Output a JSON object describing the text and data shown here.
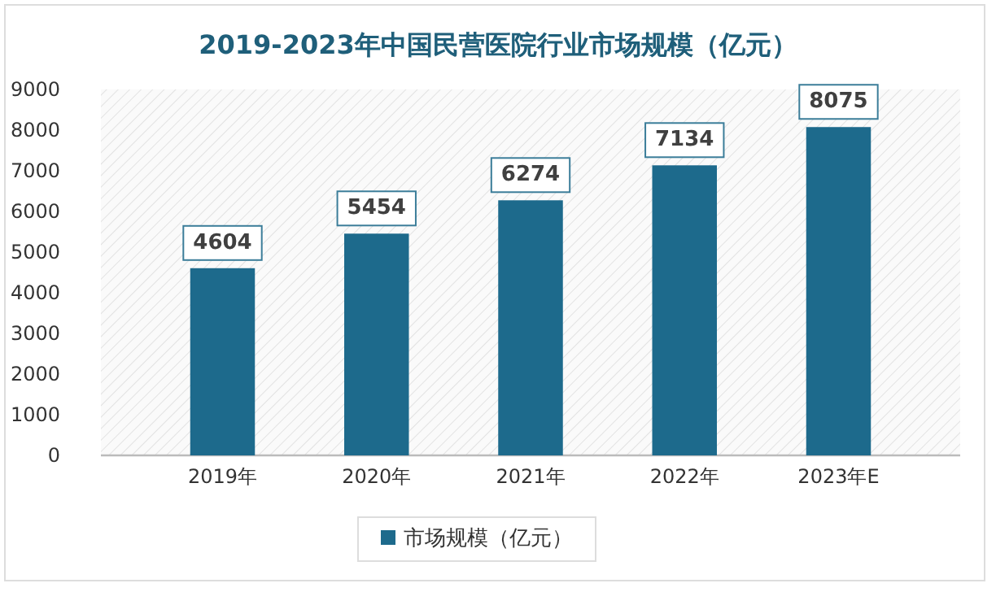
{
  "chart_data": {
    "type": "bar",
    "title": "2019-2023年中国民营医院行业市场规模（亿元）",
    "categories": [
      "2019年",
      "2020年",
      "2021年",
      "2022年",
      "2023年E"
    ],
    "series": [
      {
        "name": "市场规模（亿元）",
        "color": "#1d6a8c",
        "values": [
          4604,
          5454,
          6274,
          7134,
          8075
        ]
      }
    ],
    "ylim": [
      0,
      9000
    ],
    "yticks": [
      0,
      1000,
      2000,
      3000,
      4000,
      5000,
      6000,
      7000,
      8000,
      9000
    ],
    "data_labels": true,
    "legend": "bottom"
  }
}
